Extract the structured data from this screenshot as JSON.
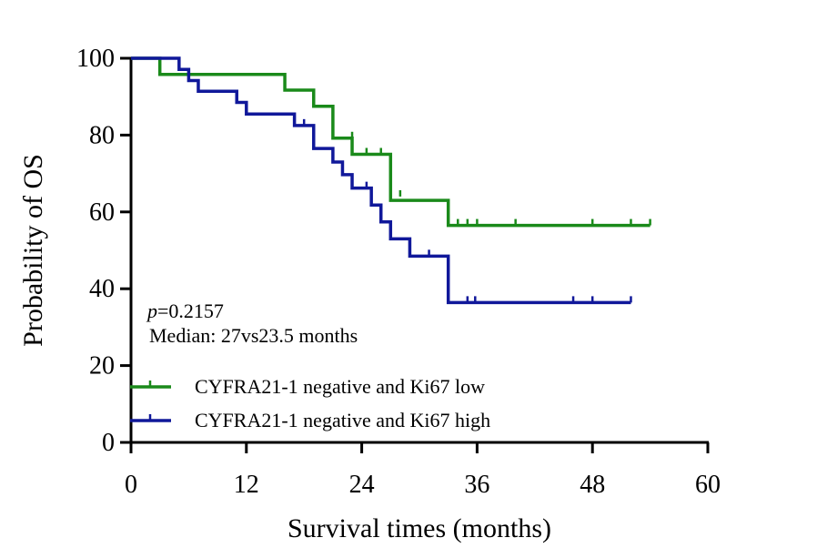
{
  "chart_data": {
    "type": "line",
    "subtype": "kaplan-meier",
    "title": "",
    "xlabel": "Survival times (months)",
    "ylabel": "Probability of OS",
    "xlim": [
      0,
      60
    ],
    "ylim": [
      0,
      100
    ],
    "xticks": [
      0,
      12,
      24,
      36,
      48,
      60
    ],
    "yticks": [
      0,
      20,
      40,
      60,
      80,
      100
    ],
    "grid": false,
    "legend_position": "lower-left",
    "annotations": {
      "p_prefix": "p",
      "p_value": "=0.2157",
      "median": "Median: 27vs23.5 months"
    },
    "series": [
      {
        "name": "CYFRA21-1 negative and Ki67 low",
        "color": "#1a8a1a",
        "steps": [
          [
            0,
            100
          ],
          [
            3,
            95.8
          ],
          [
            16,
            91.7
          ],
          [
            19,
            87.5
          ],
          [
            21,
            79.2
          ],
          [
            23,
            75
          ],
          [
            27,
            63
          ],
          [
            33,
            56.5
          ],
          [
            54,
            56.5
          ]
        ],
        "censors": [
          [
            23,
            79.2
          ],
          [
            24.5,
            75
          ],
          [
            26,
            75
          ],
          [
            28,
            64
          ],
          [
            34,
            56.5
          ],
          [
            35,
            56.5
          ],
          [
            36,
            56.5
          ],
          [
            40,
            56.5
          ],
          [
            48,
            56.5
          ],
          [
            52,
            56.5
          ],
          [
            54,
            56.5
          ]
        ]
      },
      {
        "name": "CYFRA21-1 negative and Ki67 high",
        "color": "#10189a",
        "steps": [
          [
            0,
            100
          ],
          [
            5,
            97.1
          ],
          [
            6,
            94.2
          ],
          [
            7,
            91.4
          ],
          [
            11,
            88.5
          ],
          [
            12,
            85.5
          ],
          [
            17,
            82.5
          ],
          [
            19,
            76.5
          ],
          [
            21,
            73
          ],
          [
            22,
            69.7
          ],
          [
            23,
            66.2
          ],
          [
            25,
            61.8
          ],
          [
            26,
            57.4
          ],
          [
            27,
            53
          ],
          [
            29,
            48.5
          ],
          [
            33,
            36.4
          ],
          [
            52,
            36.4
          ]
        ],
        "censors": [
          [
            18,
            82.5
          ],
          [
            24.5,
            66.2
          ],
          [
            31,
            48.5
          ],
          [
            35,
            36.4
          ],
          [
            35.8,
            36.4
          ],
          [
            46,
            36.4
          ],
          [
            48,
            36.4
          ],
          [
            52,
            36.4
          ]
        ]
      }
    ]
  }
}
